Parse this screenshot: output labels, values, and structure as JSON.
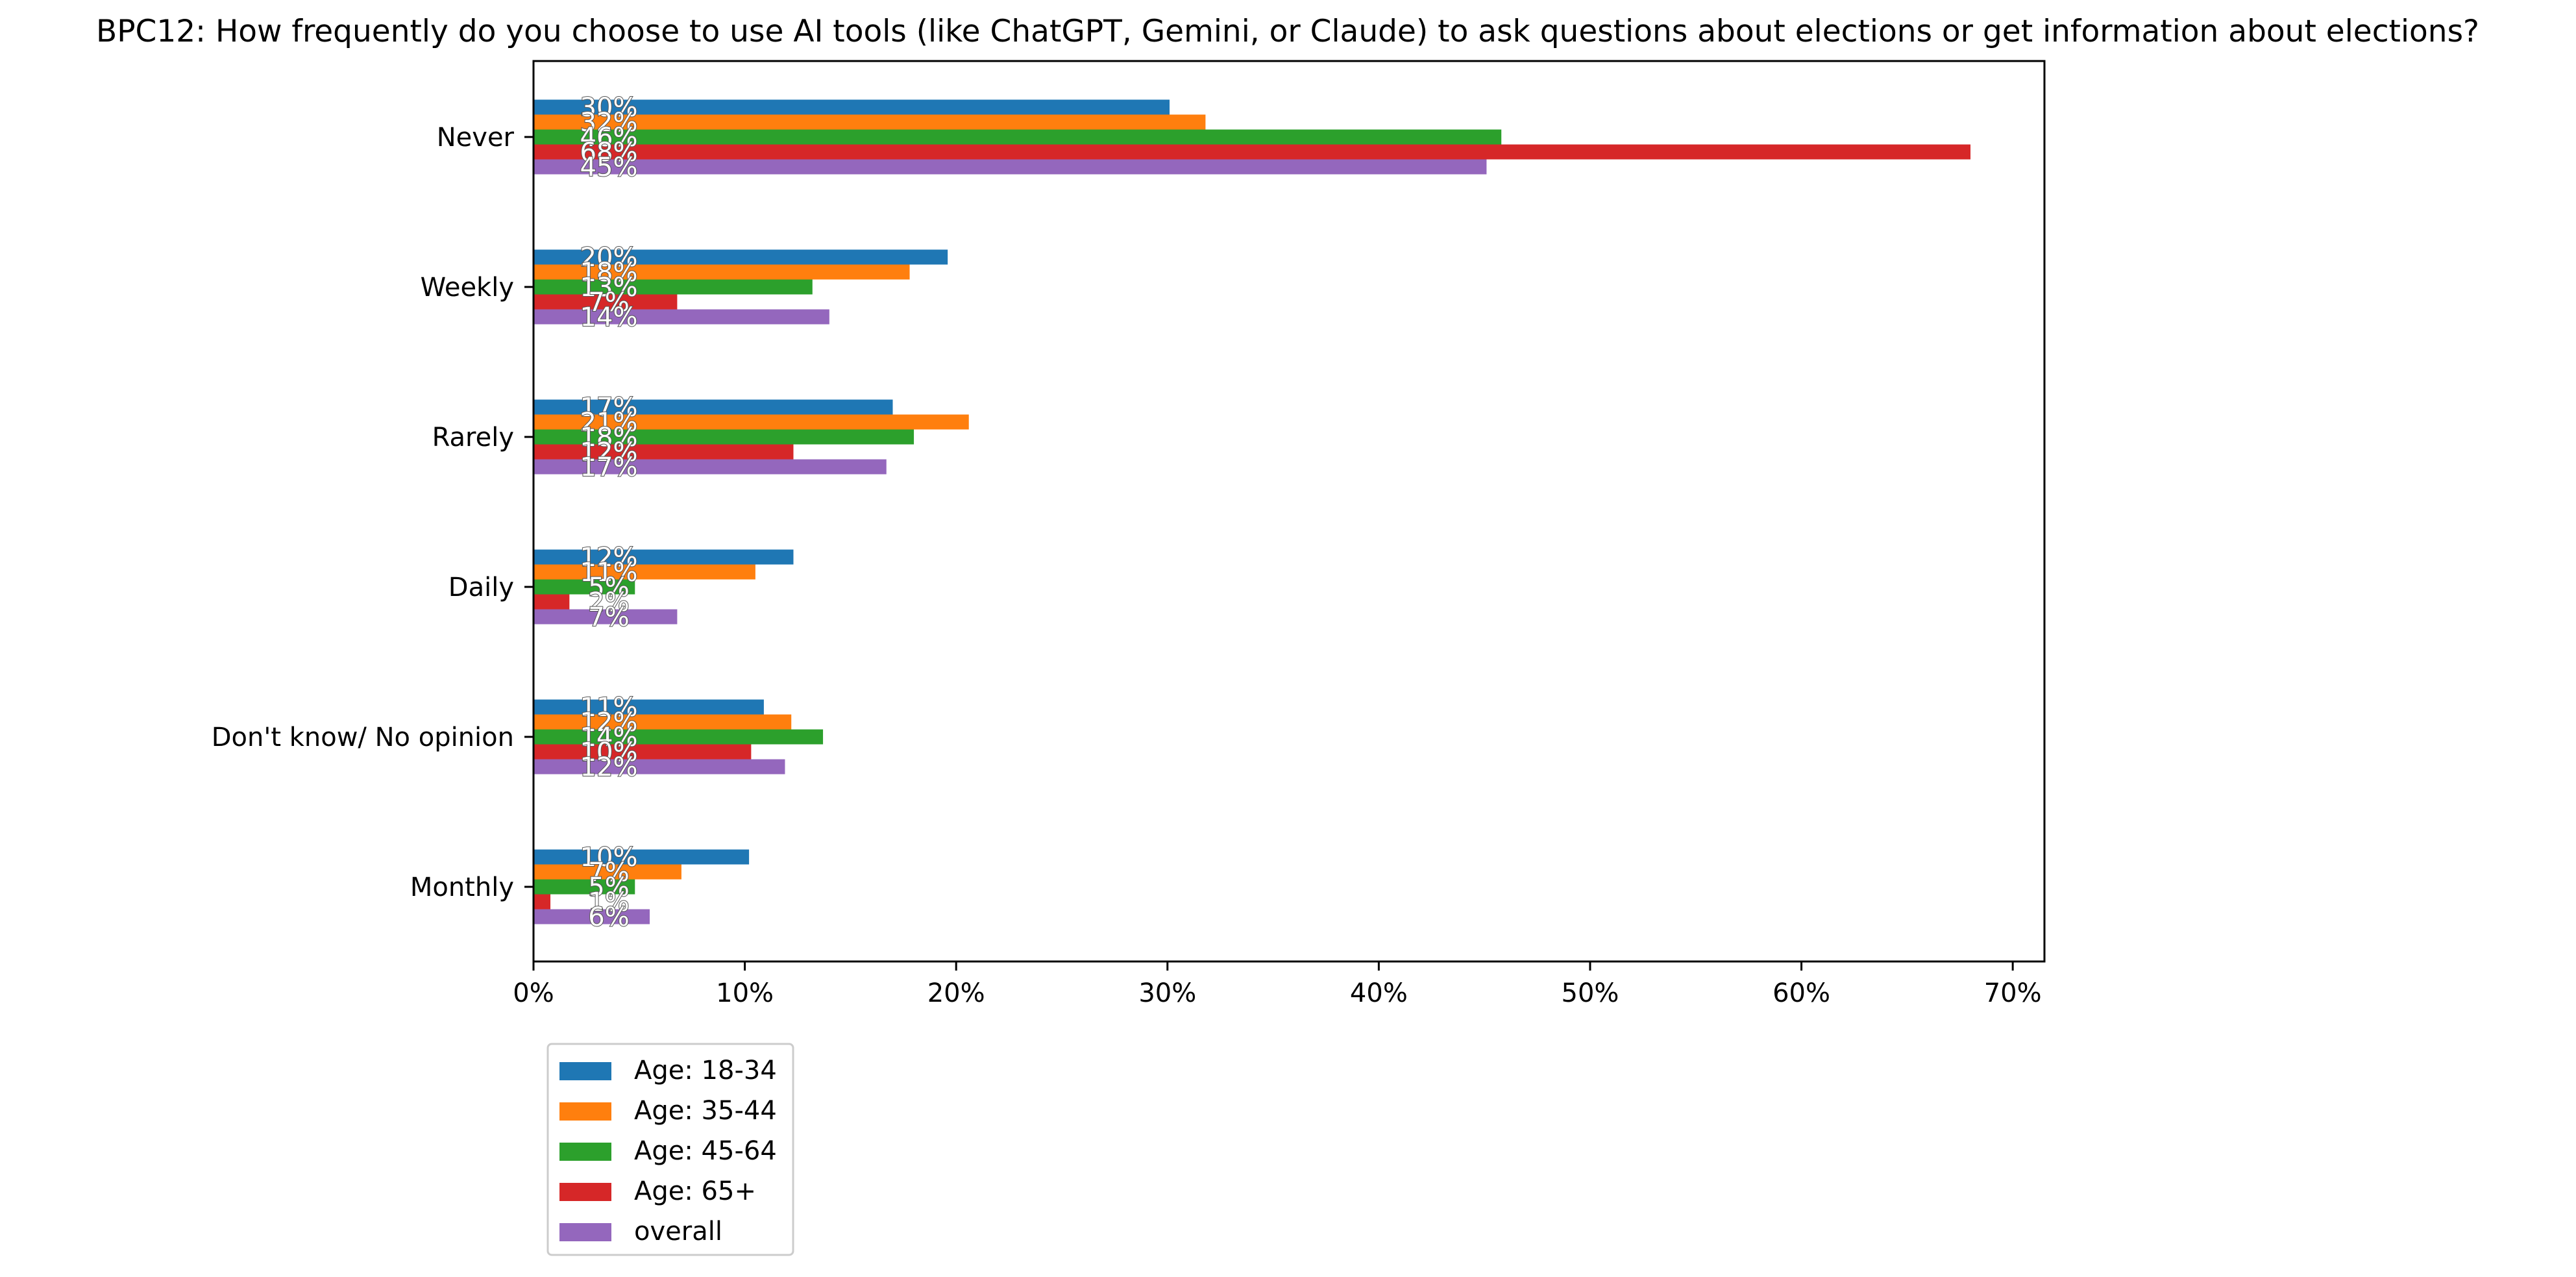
{
  "chart_data": {
    "type": "bar",
    "orientation": "horizontal",
    "title": "BPC12: How frequently do you choose to use AI tools (like ChatGPT, Gemini, or Claude) to ask questions about elections or get information about elections?",
    "xlabel": "",
    "ylabel": "",
    "xlim": [
      0,
      71.5
    ],
    "x_tick_values": [
      0,
      10,
      20,
      30,
      40,
      50,
      60,
      70
    ],
    "x_tick_labels": [
      "0%",
      "10%",
      "20%",
      "30%",
      "40%",
      "50%",
      "60%",
      "70%"
    ],
    "grid": false,
    "legend_position": "below-left",
    "categories": [
      "Never",
      "Weekly",
      "Rarely",
      "Daily",
      "Don't know/ No opinion",
      "Monthly"
    ],
    "series": [
      {
        "name": "Age: 18-34",
        "color": "#1f77b4",
        "values": [
          30.1,
          19.6,
          17.0,
          12.3,
          10.9,
          10.2
        ],
        "labels": [
          "30%",
          "20%",
          "17%",
          "12%",
          "11%",
          "10%"
        ]
      },
      {
        "name": "Age: 35-44",
        "color": "#ff7f0e",
        "values": [
          31.8,
          17.8,
          20.6,
          10.5,
          12.2,
          7.0
        ],
        "labels": [
          "32%",
          "18%",
          "21%",
          "11%",
          "12%",
          "7%"
        ]
      },
      {
        "name": "Age: 45-64",
        "color": "#2ca02c",
        "values": [
          45.8,
          13.2,
          18.0,
          4.8,
          13.7,
          4.8
        ],
        "labels": [
          "46%",
          "13%",
          "18%",
          "5%",
          "14%",
          "5%"
        ]
      },
      {
        "name": "Age: 65+",
        "color": "#d62728",
        "values": [
          68.0,
          6.8,
          12.3,
          1.7,
          10.3,
          0.8
        ],
        "labels": [
          "68%",
          "7%",
          "12%",
          "2%",
          "10%",
          "1%"
        ]
      },
      {
        "name": "overall",
        "color": "#9467bd",
        "values": [
          45.1,
          14.0,
          16.7,
          6.8,
          11.9,
          5.5
        ],
        "labels": [
          "45%",
          "14%",
          "17%",
          "7%",
          "12%",
          "6%"
        ]
      }
    ]
  }
}
